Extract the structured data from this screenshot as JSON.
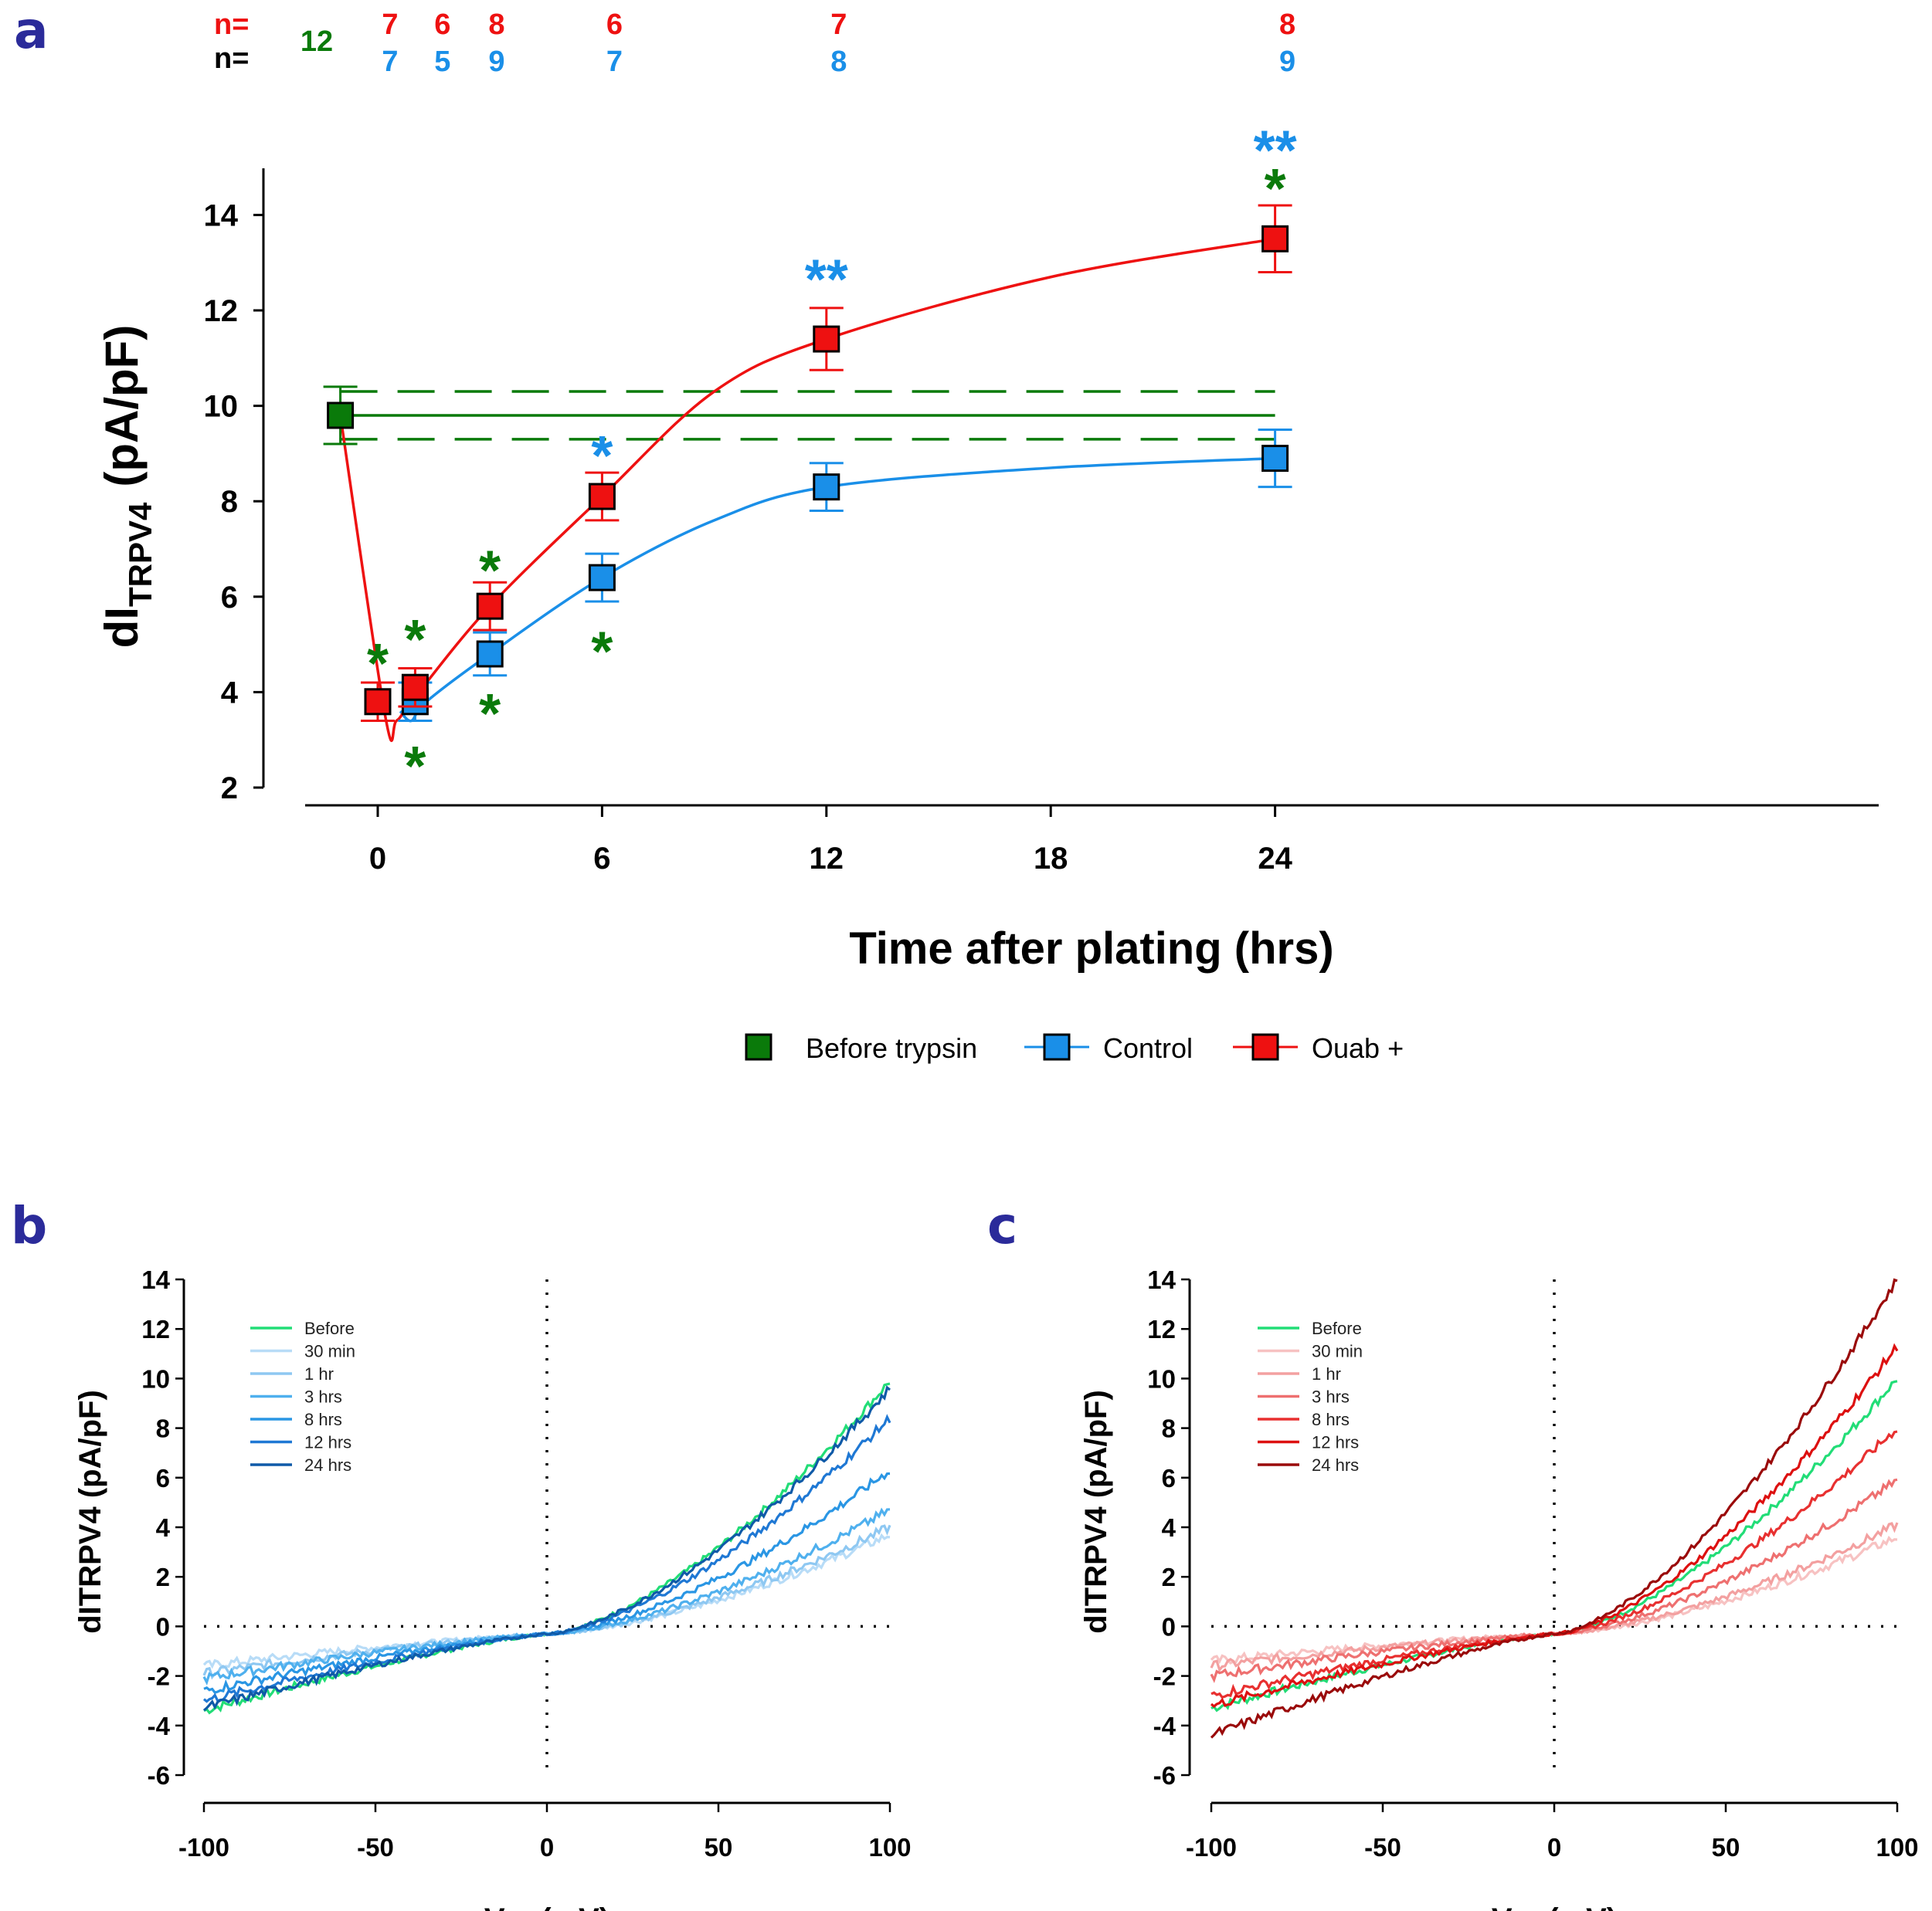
{
  "chart_data": [
    {
      "panel": "a",
      "type": "line",
      "xlabel": "Time after plating (hrs)",
      "ylabel_main": "dI",
      "ylabel_sub": "TRPV4",
      "ylabel_unit": "(pA/pF)",
      "xlim": [
        -1,
        24
      ],
      "ylim": [
        2,
        15
      ],
      "x_ticks": [
        0,
        6,
        12,
        18,
        24
      ],
      "y_ticks": [
        2,
        4,
        6,
        8,
        10,
        12,
        14
      ],
      "n_labels": {
        "label": "n=",
        "before_trypsin": {
          "x": -1,
          "n": "12",
          "color": "#0a7a0a"
        },
        "ouab": [
          {
            "x": 0,
            "n": "7"
          },
          {
            "x": 1.4,
            "n": "6"
          },
          {
            "x": 2.85,
            "n": "8"
          },
          {
            "x": 6,
            "n": "6"
          },
          {
            "x": 12,
            "n": "7"
          },
          {
            "x": 24,
            "n": "8"
          }
        ],
        "control": [
          {
            "x": 0,
            "n": "7"
          },
          {
            "x": 1.4,
            "n": "5"
          },
          {
            "x": 2.85,
            "n": "9"
          },
          {
            "x": 6,
            "n": "7"
          },
          {
            "x": 12,
            "n": "8"
          },
          {
            "x": 24,
            "n": "9"
          }
        ]
      },
      "before_trypsin": {
        "name": "Before trypsin",
        "x": -1,
        "y": 9.8,
        "err": 0.6,
        "band": [
          9.3,
          10.3
        ],
        "color": "#0a7a0a"
      },
      "series": [
        {
          "name": "Control",
          "color": "#1a8fe8",
          "x": [
            1,
            3,
            6,
            12,
            24
          ],
          "y": [
            3.8,
            4.8,
            6.4,
            8.3,
            8.9
          ],
          "err": [
            0.4,
            0.45,
            0.5,
            0.5,
            0.6
          ]
        },
        {
          "name": "Ouab +",
          "color": "#ee1111",
          "x": [
            0,
            1,
            3,
            6,
            12,
            24
          ],
          "y": [
            3.8,
            4.1,
            5.8,
            8.1,
            11.4,
            13.5
          ],
          "err": [
            0.4,
            0.4,
            0.5,
            0.5,
            0.65,
            0.7
          ]
        }
      ],
      "significance": [
        {
          "x": 0,
          "y": 4.75,
          "text": "*",
          "color": "#0a7a0a"
        },
        {
          "x": 1,
          "y": 5.25,
          "text": "*",
          "color": "#0a7a0a"
        },
        {
          "x": 1,
          "y": 2.6,
          "text": "*",
          "color": "#0a7a0a"
        },
        {
          "x": 3,
          "y": 6.7,
          "text": "*",
          "color": "#0a7a0a"
        },
        {
          "x": 3,
          "y": 3.7,
          "text": "*",
          "color": "#0a7a0a"
        },
        {
          "x": 6,
          "y": 9.1,
          "text": "*",
          "color": "#1a8fe8"
        },
        {
          "x": 6,
          "y": 5.0,
          "text": "*",
          "color": "#0a7a0a"
        },
        {
          "x": 12,
          "y": 12.8,
          "text": "**",
          "color": "#1a8fe8"
        },
        {
          "x": 24,
          "y": 15.5,
          "text": "**",
          "color": "#1a8fe8"
        },
        {
          "x": 24,
          "y": 14.7,
          "text": "*",
          "color": "#0a7a0a"
        }
      ],
      "legend": [
        "Before trypsin",
        "Control",
        "Ouab +"
      ]
    },
    {
      "panel": "b",
      "type": "line",
      "xlabel": "Vm (mV)",
      "ylabel": "dITRPV4 (pA/pF)",
      "xlim": [
        -100,
        100
      ],
      "ylim": [
        -6,
        14
      ],
      "x_ticks": [
        -100,
        -50,
        0,
        50,
        100
      ],
      "y_ticks": [
        -6,
        -4,
        -2,
        0,
        2,
        4,
        6,
        8,
        10,
        12,
        14
      ],
      "series": [
        {
          "name": "Before",
          "color": "#22dd77",
          "neg": -3.4,
          "pos": 9.9
        },
        {
          "name": "30 min",
          "color": "#b8dcf7",
          "neg": -1.6,
          "pos": 3.7
        },
        {
          "name": "1 hr",
          "color": "#8ec8f2",
          "neg": -1.9,
          "pos": 4.0
        },
        {
          "name": "3 hrs",
          "color": "#4fb0ee",
          "neg": -2.1,
          "pos": 4.7
        },
        {
          "name": "8 hrs",
          "color": "#2a96e4",
          "neg": -2.6,
          "pos": 6.3
        },
        {
          "name": "12 hrs",
          "color": "#1f78d4",
          "neg": -3.0,
          "pos": 8.4
        },
        {
          "name": "24 hrs",
          "color": "#0f5aa8",
          "neg": -3.3,
          "pos": 9.6
        }
      ]
    },
    {
      "panel": "c",
      "type": "line",
      "xlabel": "Vm (mV)",
      "ylabel": "dITRPV4 (pA/pF)",
      "xlim": [
        -100,
        100
      ],
      "ylim": [
        -6,
        14
      ],
      "x_ticks": [
        -100,
        -50,
        0,
        50,
        100
      ],
      "y_ticks": [
        -6,
        -4,
        -2,
        0,
        2,
        4,
        6,
        8,
        10,
        12,
        14
      ],
      "series": [
        {
          "name": "Before",
          "color": "#22dd77",
          "neg": -3.3,
          "pos": 10.0
        },
        {
          "name": "30 min",
          "color": "#f7c2c2",
          "neg": -1.4,
          "pos": 3.6
        },
        {
          "name": "1 hr",
          "color": "#f3a0a0",
          "neg": -1.6,
          "pos": 4.1
        },
        {
          "name": "3 hrs",
          "color": "#ee7070",
          "neg": -2.0,
          "pos": 5.9
        },
        {
          "name": "8 hrs",
          "color": "#e83030",
          "neg": -2.8,
          "pos": 8.0
        },
        {
          "name": "12 hrs",
          "color": "#dd1010",
          "neg": -3.2,
          "pos": 11.3
        },
        {
          "name": "24 hrs",
          "color": "#9a0a0a",
          "neg": -4.4,
          "pos": 14.0
        }
      ]
    }
  ],
  "panel_letters": {
    "a": "a",
    "b": "b",
    "c": "c"
  }
}
